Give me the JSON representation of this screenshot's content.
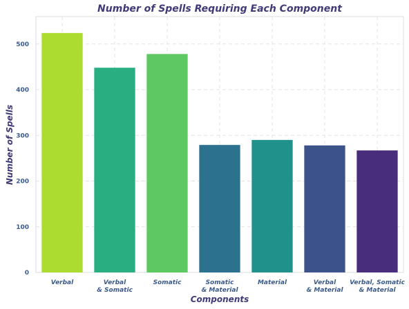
{
  "chart_data": {
    "type": "bar",
    "title": "Number of Spells Requiring Each Component",
    "xlabel": "Components",
    "ylabel": "Number of Spells",
    "categories": [
      [
        "Verbal"
      ],
      [
        "Verbal",
        "& Somatic"
      ],
      [
        "Somatic"
      ],
      [
        "Somatic",
        "& Material"
      ],
      [
        "Material"
      ],
      [
        "Verbal",
        "& Material"
      ],
      [
        "Verbal, Somatic",
        "& Material"
      ]
    ],
    "values": [
      524,
      448,
      478,
      279,
      290,
      278,
      267
    ],
    "colors": [
      "#addc30",
      "#28ae80",
      "#5ec962",
      "#2c728e",
      "#21918c",
      "#3b528b",
      "#472d7b"
    ],
    "ylim": [
      0,
      560
    ],
    "yticks": [
      0,
      100,
      200,
      300,
      400,
      500
    ],
    "grid": true
  }
}
